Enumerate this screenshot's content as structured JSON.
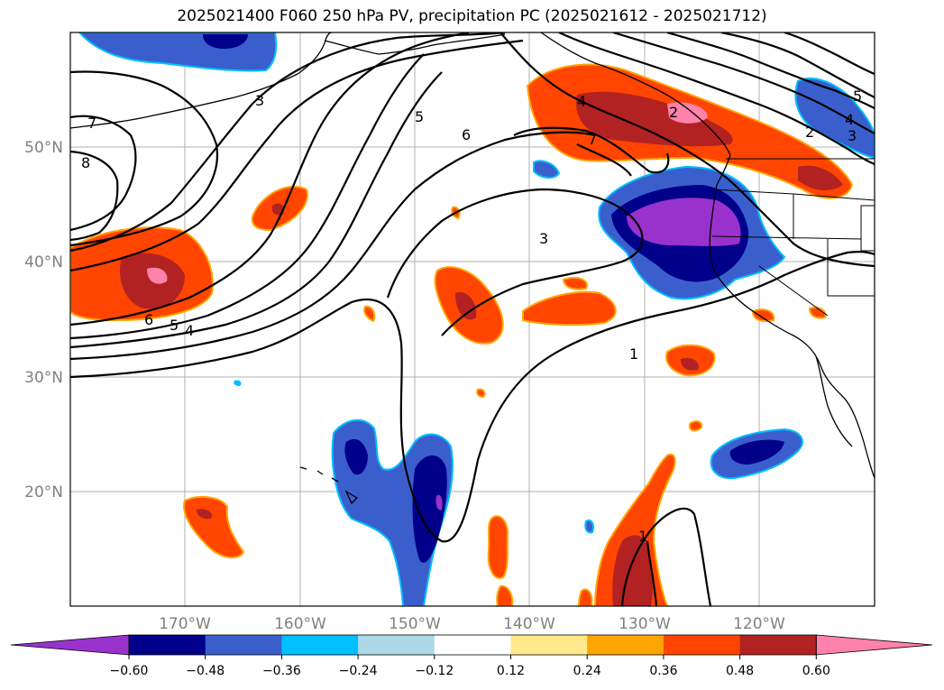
{
  "title": "2025021400 F060 250 hPa PV, precipitation PC (2025021612 - 2025021712)",
  "lon_labels": [
    "170°W",
    "160°W",
    "150°W",
    "140°W",
    "130°W",
    "120°W"
  ],
  "lat_labels": [
    "50°N",
    "40°N",
    "30°N",
    "20°N"
  ],
  "colorbar": {
    "ticks": [
      "−0.60",
      "−0.48",
      "−0.36",
      "−0.24",
      "−0.12",
      "0.12",
      "0.24",
      "0.36",
      "0.48",
      "0.60"
    ],
    "colors": [
      "#9932cc",
      "#00008b",
      "#3a5fcd",
      "#00bfff",
      "#add8e6",
      "#ffffff",
      "#ffe98a",
      "#ffa500",
      "#ff4500",
      "#b22222",
      "#ff82ab"
    ],
    "extend": "both"
  },
  "map_extent": {
    "lon": [
      -180,
      -110
    ],
    "lat": [
      10,
      60
    ]
  },
  "pv_contour_labels": [
    "7",
    "8",
    "6",
    "5",
    "4",
    "3",
    "5",
    "6",
    "3",
    "1",
    "4",
    "2",
    "7",
    "2",
    "5",
    "4",
    "3",
    "1"
  ]
}
